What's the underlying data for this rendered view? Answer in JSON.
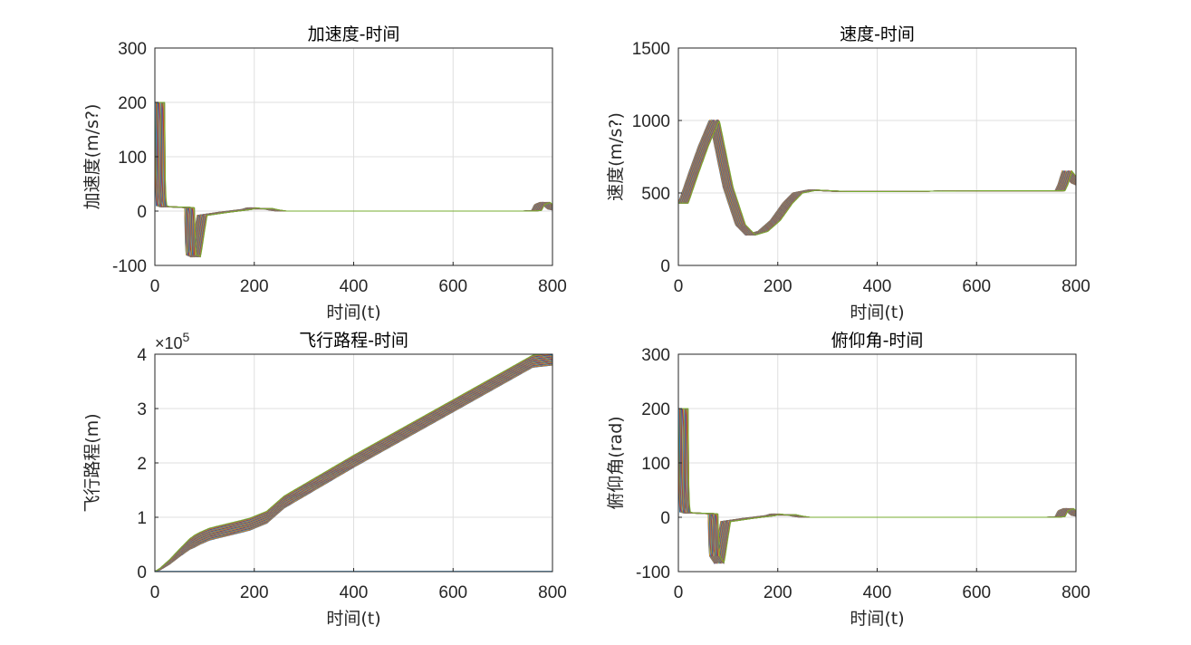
{
  "chart_data": [
    {
      "type": "line",
      "title": "加速度-时间",
      "xlabel": "时间(t)",
      "ylabel": "加速度(m/s?)",
      "xlim": [
        0,
        800
      ],
      "ylim": [
        -100,
        300
      ],
      "xticks": [
        "0",
        "200",
        "400",
        "600",
        "800"
      ],
      "yticks": [
        "-100",
        "0",
        "100",
        "200",
        "300"
      ],
      "grid": true,
      "series_count": 40,
      "series_description": "many overlapping trajectories",
      "template": {
        "x": [
          0,
          1,
          3,
          10,
          50,
          60,
          62,
          72,
          85,
          130,
          175,
          185,
          200,
          215,
          230,
          245,
          400,
          600,
          740,
          758,
          764,
          775,
          790,
          800
        ],
        "y": [
          200,
          60,
          10,
          8,
          7,
          6,
          -80,
          -84,
          -8,
          -2,
          3,
          6,
          4,
          5,
          2,
          0,
          0,
          0,
          0,
          1,
          12,
          16,
          4,
          2
        ],
        "shift_x_min": 0,
        "shift_x_max": 20
      }
    },
    {
      "type": "line",
      "title": "速度-时间",
      "xlabel": "时间(t)",
      "ylabel": "速度(m/s?)",
      "xlim": [
        0,
        800
      ],
      "ylim": [
        0,
        1500
      ],
      "xticks": [
        "0",
        "200",
        "400",
        "600",
        "800"
      ],
      "yticks": [
        "0",
        "500",
        "1000",
        "1500"
      ],
      "grid": true,
      "series_count": 40,
      "series_description": "many overlapping trajectories",
      "template": {
        "x": [
          0,
          20,
          40,
          62,
          64,
          90,
          115,
          135,
          160,
          185,
          210,
          230,
          260,
          320,
          400,
          600,
          740,
          758,
          764,
          772,
          790,
          800
        ],
        "y": [
          430,
          630,
          820,
          1000,
          975,
          540,
          280,
          210,
          235,
          310,
          430,
          500,
          520,
          510,
          510,
          515,
          515,
          515,
          560,
          650,
          570,
          555
        ],
        "shift_x_min": 0,
        "shift_x_max": 20
      }
    },
    {
      "type": "line",
      "title": "飞行路程-时间",
      "xlabel": "时间(t)",
      "ylabel": "飞行路程(m)",
      "xlim": [
        0,
        800
      ],
      "ylim": [
        0,
        400000
      ],
      "xticks": [
        "0",
        "200",
        "400",
        "600",
        "800"
      ],
      "yticks": [
        "0",
        "1",
        "2",
        "3",
        "4"
      ],
      "exponent_label": "×10",
      "exponent_power": "5",
      "grid": true,
      "series_count": 40,
      "series_description": "many overlapping trajectories",
      "template": {
        "x": [
          0,
          10,
          30,
          50,
          70,
          90,
          110,
          150,
          190,
          225,
          260,
          400,
          600,
          760,
          800
        ],
        "y": [
          0,
          4000,
          17000,
          33000,
          48000,
          58000,
          66000,
          75000,
          84000,
          97000,
          125000,
          200000,
          302000,
          384000,
          388000
        ],
        "band_y_min": -8000,
        "band_y_max": 14000
      },
      "baseline_series": {
        "x": [
          0,
          800
        ],
        "y": [
          0,
          0
        ]
      }
    },
    {
      "type": "line",
      "title": "俯仰角-时间",
      "xlabel": "时间(t)",
      "ylabel": "俯仰角(rad)",
      "xlim": [
        0,
        800
      ],
      "ylim": [
        -100,
        300
      ],
      "xticks": [
        "0",
        "200",
        "400",
        "600",
        "800"
      ],
      "yticks": [
        "-100",
        "0",
        "100",
        "200",
        "300"
      ],
      "grid": true,
      "series_count": 40,
      "series_description": "many overlapping trajectories",
      "template": {
        "x": [
          0,
          1,
          3,
          10,
          50,
          60,
          62,
          72,
          85,
          130,
          175,
          185,
          200,
          215,
          230,
          245,
          400,
          600,
          740,
          758,
          764,
          775,
          790,
          800
        ],
        "y": [
          200,
          60,
          10,
          8,
          7,
          6,
          -70,
          -84,
          -8,
          -2,
          3,
          6,
          4,
          5,
          2,
          0,
          0,
          0,
          0,
          1,
          12,
          16,
          4,
          2
        ],
        "shift_x_min": 0,
        "shift_x_max": 20
      }
    }
  ],
  "colors": {
    "palette": [
      "#0072BD",
      "#D95319",
      "#EDB120",
      "#7E2F8E",
      "#77AC30",
      "#4DBEEE",
      "#A2142F"
    ],
    "axis": "#262626",
    "grid": "#dfdfdf"
  }
}
